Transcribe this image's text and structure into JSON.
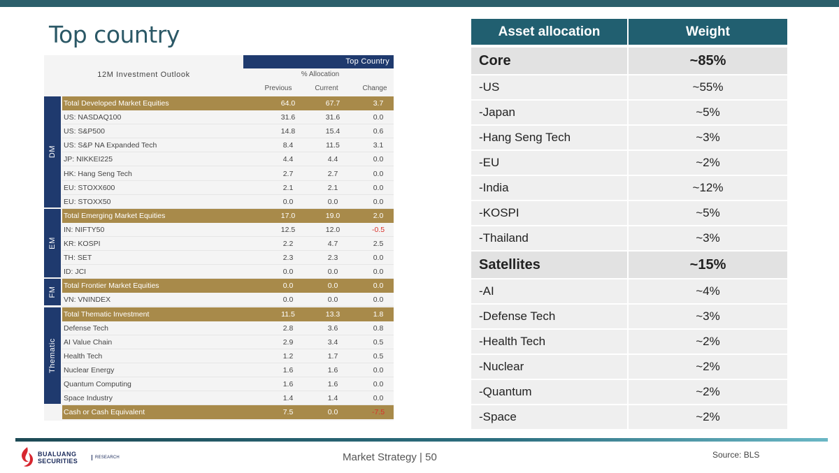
{
  "title": "Top country",
  "left_table": {
    "header_label": "Top Country",
    "outlook_label": "12M Investment Outlook",
    "alloc_label": "% Allocation",
    "columns": [
      "Previous",
      "Current",
      "Change"
    ],
    "groups": [
      {
        "label": "DM",
        "rows": [
          {
            "name": "Total Developed Market Equities",
            "prev": "64.0",
            "curr": "67.7",
            "chg": "3.7",
            "total": true
          },
          {
            "name": "US: NASDAQ100",
            "prev": "31.6",
            "curr": "31.6",
            "chg": "0.0"
          },
          {
            "name": "US: S&P500",
            "prev": "14.8",
            "curr": "15.4",
            "chg": "0.6"
          },
          {
            "name": "US: S&P NA Expanded Tech",
            "prev": "8.4",
            "curr": "11.5",
            "chg": "3.1"
          },
          {
            "name": "JP: NIKKEI225",
            "prev": "4.4",
            "curr": "4.4",
            "chg": "0.0"
          },
          {
            "name": "HK: Hang Seng Tech",
            "prev": "2.7",
            "curr": "2.7",
            "chg": "0.0"
          },
          {
            "name": "EU: STOXX600",
            "prev": "2.1",
            "curr": "2.1",
            "chg": "0.0"
          },
          {
            "name": "EU: STOXX50",
            "prev": "0.0",
            "curr": "0.0",
            "chg": "0.0"
          }
        ]
      },
      {
        "label": "EM",
        "rows": [
          {
            "name": "Total Emerging Market Equities",
            "prev": "17.0",
            "curr": "19.0",
            "chg": "2.0",
            "total": true
          },
          {
            "name": "IN: NIFTY50",
            "prev": "12.5",
            "curr": "12.0",
            "chg": "-0.5"
          },
          {
            "name": "KR: KOSPI",
            "prev": "2.2",
            "curr": "4.7",
            "chg": "2.5"
          },
          {
            "name": "TH: SET",
            "prev": "2.3",
            "curr": "2.3",
            "chg": "0.0"
          },
          {
            "name": "ID: JCI",
            "prev": "0.0",
            "curr": "0.0",
            "chg": "0.0"
          }
        ]
      },
      {
        "label": "FM",
        "rows": [
          {
            "name": "Total Frontier Market Equities",
            "prev": "0.0",
            "curr": "0.0",
            "chg": "0.0",
            "total": true
          },
          {
            "name": "VN: VNINDEX",
            "prev": "0.0",
            "curr": "0.0",
            "chg": "0.0"
          }
        ]
      },
      {
        "label": "Thematic",
        "rows": [
          {
            "name": "Total Thematic Investment",
            "prev": "11.5",
            "curr": "13.3",
            "chg": "1.8",
            "total": true
          },
          {
            "name": "Defense Tech",
            "prev": "2.8",
            "curr": "3.6",
            "chg": "0.8"
          },
          {
            "name": "AI Value Chain",
            "prev": "2.9",
            "curr": "3.4",
            "chg": "0.5"
          },
          {
            "name": "Health Tech",
            "prev": "1.2",
            "curr": "1.7",
            "chg": "0.5"
          },
          {
            "name": "Nuclear Energy",
            "prev": "1.6",
            "curr": "1.6",
            "chg": "0.0"
          },
          {
            "name": "Quantum Computing",
            "prev": "1.6",
            "curr": "1.6",
            "chg": "0.0"
          },
          {
            "name": "Space Industry",
            "prev": "1.4",
            "curr": "1.4",
            "chg": "0.0"
          }
        ]
      }
    ],
    "cash_row": {
      "name": "Cash or Cash Equivalent",
      "prev": "7.5",
      "curr": "0.0",
      "chg": "-7.5",
      "total": true
    }
  },
  "right_table": {
    "headers": [
      "Asset allocation",
      "Weight"
    ],
    "rows": [
      {
        "label": "Core",
        "weight": "~85%",
        "section": true
      },
      {
        "label": "-US",
        "weight": "~55%"
      },
      {
        "label": "-Japan",
        "weight": "~5%"
      },
      {
        "label": "-Hang Seng Tech",
        "weight": "~3%"
      },
      {
        "label": "-EU",
        "weight": "~2%"
      },
      {
        "label": "-India",
        "weight": "~12%"
      },
      {
        "label": "-KOSPI",
        "weight": "~5%"
      },
      {
        "label": "-Thailand",
        "weight": "~3%"
      },
      {
        "label": "Satellites",
        "weight": "~15%",
        "section": true
      },
      {
        "label": "-AI",
        "weight": "~4%"
      },
      {
        "label": "-Defense Tech",
        "weight": "~3%"
      },
      {
        "label": "-Health Tech",
        "weight": "~2%"
      },
      {
        "label": "-Nuclear",
        "weight": "~2%"
      },
      {
        "label": "-Quantum",
        "weight": "~2%"
      },
      {
        "label": "-Space",
        "weight": "~2%"
      }
    ]
  },
  "footer": {
    "logo_line1": "BUALUANG",
    "logo_line2": "SECURITIES",
    "logo_tag": "RESEARCH",
    "page_ref": "Market Strategy | 50",
    "source": "Source: BLS"
  },
  "colors": {
    "brand": "#215f70",
    "navy": "#1f3a6e",
    "gold": "#a88a4a",
    "negative": "#d9312a",
    "logo_red": "#d7262f"
  }
}
